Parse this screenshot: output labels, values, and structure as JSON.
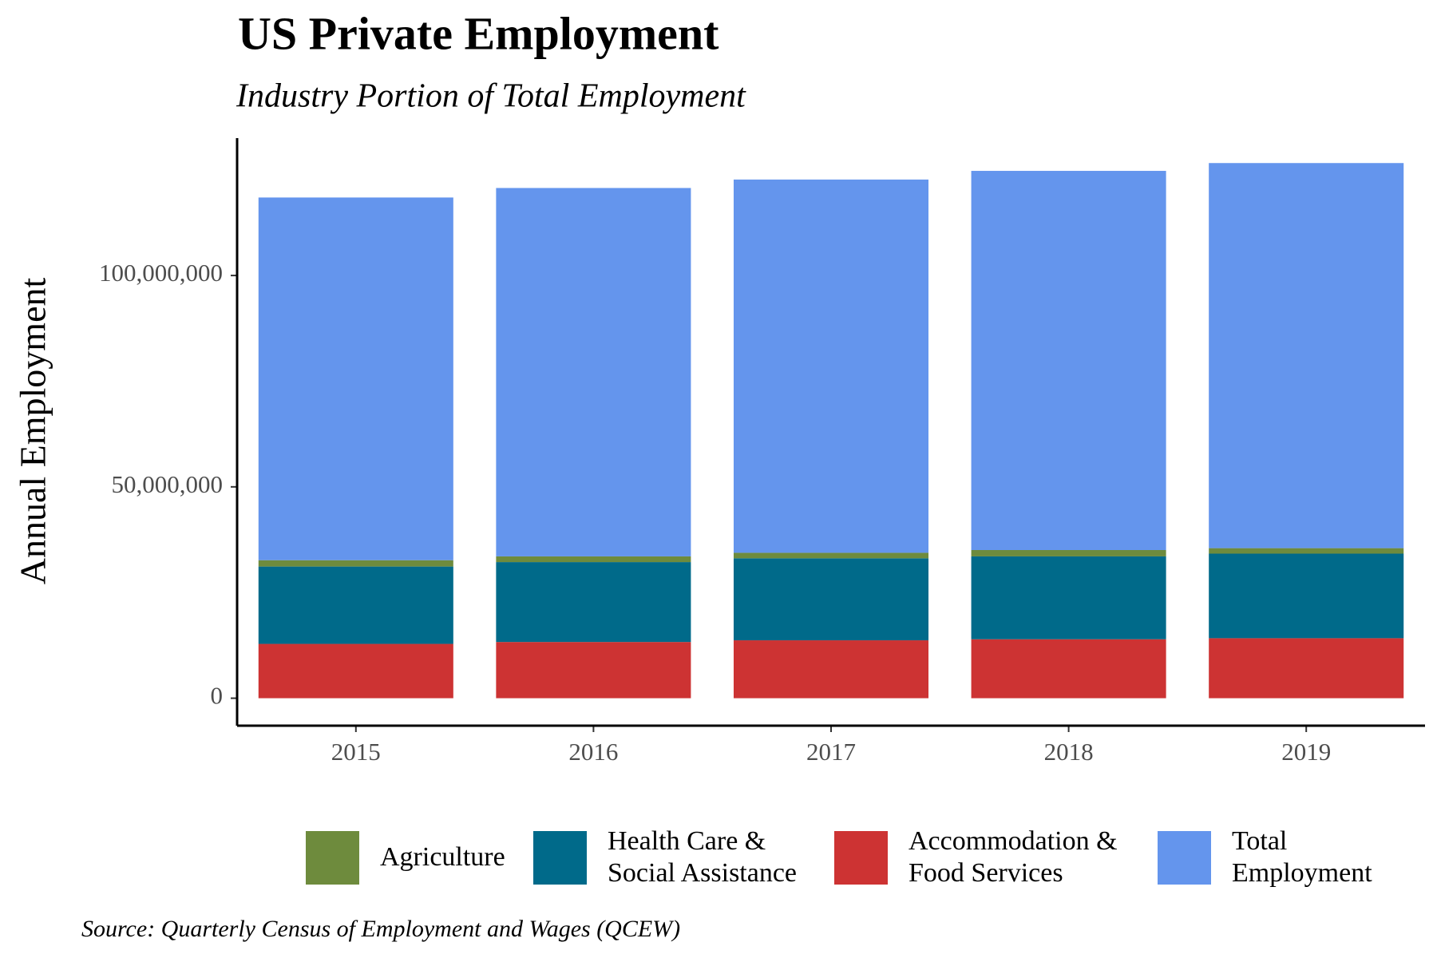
{
  "chart_data": {
    "type": "stacked_bar",
    "title": "US Private Employment",
    "subtitle": "Industry Portion of Total Employment",
    "y_label": "Annual Employment",
    "source": "Source: Quarterly Census of Employment and Wages (QCEW)",
    "categories": [
      "2015",
      "2016",
      "2017",
      "2018",
      "2019"
    ],
    "series": [
      {
        "name": "Agriculture",
        "color": "#6e8b3d",
        "values": [
          1500000,
          1350000,
          1300000,
          1500000,
          1300000
        ]
      },
      {
        "name": "Health Care & Social Assistance",
        "color": "#006a8a",
        "values": [
          18300000,
          18900000,
          19400000,
          19600000,
          20000000
        ]
      },
      {
        "name": "Accommodation & Food Services",
        "color": "#cd3333",
        "values": [
          12850000,
          13300000,
          13700000,
          13950000,
          14200000
        ]
      },
      {
        "name": "Total Employment",
        "color": "#6495ed",
        "values": [
          85800000,
          87150000,
          88300000,
          89700000,
          91100000
        ]
      }
    ],
    "ylim": [
      -6500000,
      132500000
    ],
    "yticks": [
      0,
      {
        "value": 50000000,
        "label": "50,000,000"
      },
      {
        "value": 100000000,
        "label": "100,000,000"
      }
    ],
    "grid": false,
    "legend": "bottom"
  }
}
